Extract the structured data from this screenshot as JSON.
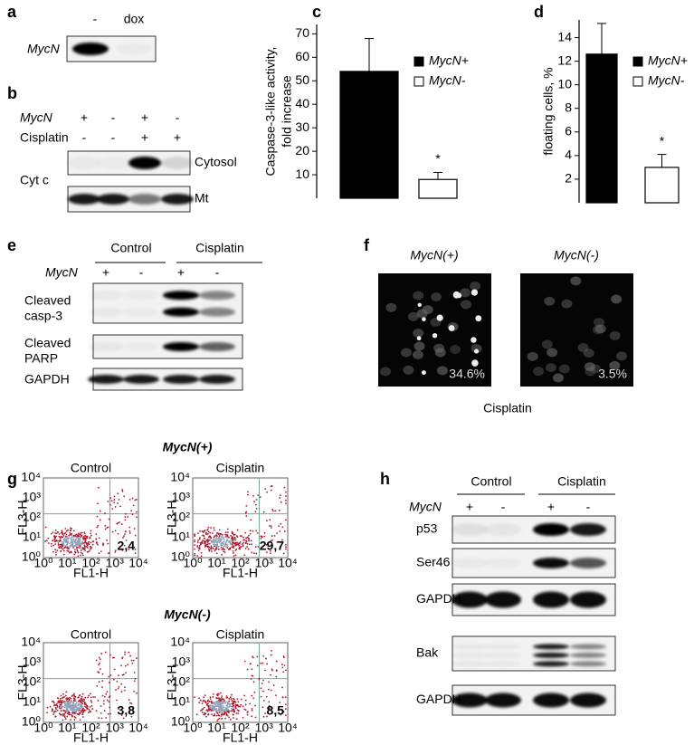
{
  "panels": {
    "a": {
      "letter": "a",
      "lanes": [
        "-",
        "dox"
      ],
      "row_label": "MycN"
    },
    "b": {
      "letter": "b",
      "rows": [
        {
          "label": "MycN",
          "signs": [
            "+",
            "-",
            "+",
            "-"
          ]
        },
        {
          "label": "Cisplatin",
          "signs": [
            "-",
            "-",
            "+",
            "+"
          ]
        }
      ],
      "protein": "Cyt c",
      "blots": [
        "Cytosol",
        "Mt"
      ]
    },
    "e": {
      "letter": "e",
      "groups": [
        "Control",
        "Cisplatin"
      ],
      "row_label": "MycN",
      "signs": [
        "+",
        "-",
        "+",
        "-"
      ],
      "blots": [
        [
          "Cleaved",
          "casp-3"
        ],
        [
          "Cleaved",
          "PARP"
        ],
        [
          "GAPDH"
        ]
      ]
    },
    "f": {
      "letter": "f",
      "images": [
        {
          "label": "MycN(+)",
          "percent": "34.6%"
        },
        {
          "label": "MycN(-)",
          "percent": "3.5%"
        }
      ],
      "caption": "Cisplatin"
    },
    "g": {
      "letter": "g",
      "rows": [
        {
          "label": "MycN(+)",
          "plots": [
            {
              "title": "Control",
              "value": "2,4"
            },
            {
              "title": "Cisplatin",
              "value": "29,7"
            }
          ]
        },
        {
          "label": "MycN(-)",
          "plots": [
            {
              "title": "Control",
              "value": "3,8"
            },
            {
              "title": "Cisplatin",
              "value": "8,5"
            }
          ]
        }
      ],
      "x_axis": "FL1-H",
      "y_axis": "FL3-H",
      "ticks": [
        "10⁰",
        "10¹",
        "10²",
        "10³",
        "10⁴"
      ]
    },
    "h": {
      "letter": "h",
      "groups": [
        "Control",
        "Cisplatin"
      ],
      "row_label": "MycN",
      "signs": [
        "+",
        "-",
        "+",
        "-"
      ],
      "blots": [
        "p53",
        "Ser46",
        "GAPDH",
        "Bak",
        "GAPDH"
      ]
    }
  },
  "chart_data": [
    {
      "type": "bar",
      "panel_letter": "c",
      "ylabel": [
        "Caspase-3-like activity,",
        "fold increase"
      ],
      "categories": [
        null
      ],
      "series": [
        {
          "name": "MycN+",
          "color": "#000000",
          "values": [
            54
          ],
          "errors": [
            14
          ]
        },
        {
          "name": "MycN-",
          "color": "#ffffff",
          "values": [
            8
          ],
          "errors": [
            3
          ]
        }
      ],
      "annotations": [
        "*"
      ],
      "ylim": [
        0,
        74
      ],
      "yticks": [
        10,
        20,
        30,
        40,
        50,
        60,
        70
      ]
    },
    {
      "type": "bar",
      "panel_letter": "d",
      "ylabel": [
        "floating  cells, %"
      ],
      "categories": [
        null
      ],
      "series": [
        {
          "name": "MycN+",
          "color": "#000000",
          "values": [
            12.6
          ],
          "errors": [
            2.6
          ]
        },
        {
          "name": "MycN-",
          "color": "#ffffff",
          "values": [
            3
          ],
          "errors": [
            1.1
          ]
        }
      ],
      "annotations": [
        "*"
      ],
      "ylim": [
        0,
        15.5
      ],
      "yticks": [
        2,
        4,
        6,
        8,
        10,
        12,
        14
      ]
    }
  ]
}
